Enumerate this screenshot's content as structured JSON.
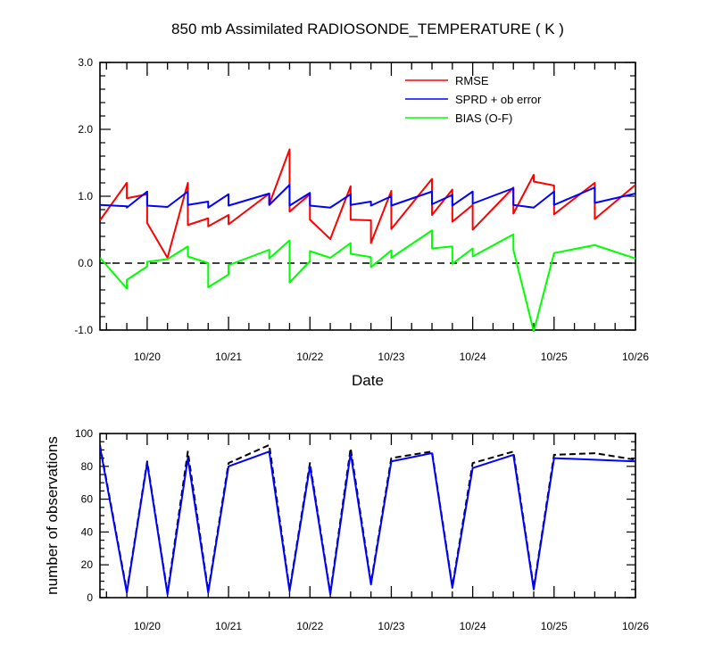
{
  "chart_data": [
    {
      "type": "line",
      "title": "850 mb Assimilated RADIOSONDE_TEMPERATURE ( K )",
      "xlabel": "Date",
      "ylabel": "",
      "x_range_days": [
        19.42,
        26.0
      ],
      "xtick_labels": [
        "10/20",
        "10/21",
        "10/22",
        "10/23",
        "10/24",
        "10/25",
        "10/26"
      ],
      "xtick_days": [
        20,
        21,
        22,
        23,
        24,
        25,
        26
      ],
      "ylim": [
        -1.0,
        3.0
      ],
      "yticks": [
        -1.0,
        0.0,
        1.0,
        2.0,
        3.0
      ],
      "ytick_labels": [
        "-1.0",
        "0.0",
        "1.0",
        "2.0",
        "3.0"
      ],
      "zero_line": true,
      "legend_position": "top-right",
      "series": [
        {
          "name": "RMSE",
          "color": "#ff0000",
          "points": [
            [
              19.42,
              0.64
            ],
            [
              19.75,
              1.2
            ],
            [
              19.75,
              0.97
            ],
            [
              20.0,
              1.03
            ],
            [
              20.0,
              0.6
            ],
            [
              20.25,
              0.08
            ],
            [
              20.5,
              1.2
            ],
            [
              20.5,
              0.57
            ],
            [
              20.75,
              0.67
            ],
            [
              20.75,
              0.55
            ],
            [
              21.0,
              0.72
            ],
            [
              21.0,
              0.58
            ],
            [
              21.5,
              1.04
            ],
            [
              21.5,
              0.88
            ],
            [
              21.75,
              1.7
            ],
            [
              21.75,
              0.77
            ],
            [
              22.0,
              1.03
            ],
            [
              22.0,
              0.65
            ],
            [
              22.25,
              0.36
            ],
            [
              22.5,
              1.15
            ],
            [
              22.5,
              0.65
            ],
            [
              22.75,
              0.64
            ],
            [
              22.75,
              0.3
            ],
            [
              23.0,
              1.08
            ],
            [
              23.0,
              0.51
            ],
            [
              23.5,
              1.26
            ],
            [
              23.5,
              0.72
            ],
            [
              23.75,
              1.1
            ],
            [
              23.75,
              0.62
            ],
            [
              24.0,
              0.87
            ],
            [
              24.0,
              0.5
            ],
            [
              24.5,
              1.13
            ],
            [
              24.5,
              0.74
            ],
            [
              24.75,
              1.32
            ],
            [
              24.75,
              1.22
            ],
            [
              25.0,
              1.16
            ],
            [
              25.0,
              0.73
            ],
            [
              25.5,
              1.2
            ],
            [
              25.5,
              0.66
            ],
            [
              26.0,
              1.17
            ],
            [
              26.0,
              0.7
            ]
          ]
        },
        {
          "name": "SPRD + ob error",
          "color": "#0000ff",
          "points": [
            [
              19.42,
              0.87
            ],
            [
              19.75,
              0.85
            ],
            [
              19.75,
              0.83
            ],
            [
              20.0,
              1.07
            ],
            [
              20.0,
              0.86
            ],
            [
              20.25,
              0.84
            ],
            [
              20.5,
              1.07
            ],
            [
              20.5,
              0.87
            ],
            [
              20.75,
              0.92
            ],
            [
              20.75,
              0.83
            ],
            [
              21.0,
              1.03
            ],
            [
              21.0,
              0.86
            ],
            [
              21.5,
              1.04
            ],
            [
              21.5,
              0.87
            ],
            [
              21.75,
              1.17
            ],
            [
              21.75,
              0.86
            ],
            [
              22.0,
              1.05
            ],
            [
              22.0,
              0.86
            ],
            [
              22.25,
              0.83
            ],
            [
              22.5,
              1.03
            ],
            [
              22.5,
              0.87
            ],
            [
              22.75,
              0.92
            ],
            [
              22.75,
              0.86
            ],
            [
              23.0,
              1.0
            ],
            [
              23.0,
              0.86
            ],
            [
              23.5,
              1.07
            ],
            [
              23.5,
              0.88
            ],
            [
              23.75,
              1.02
            ],
            [
              23.75,
              0.86
            ],
            [
              24.0,
              1.07
            ],
            [
              24.0,
              0.89
            ],
            [
              24.5,
              1.12
            ],
            [
              24.5,
              0.87
            ],
            [
              24.75,
              0.83
            ],
            [
              25.0,
              1.07
            ],
            [
              25.0,
              0.87
            ],
            [
              25.5,
              1.13
            ],
            [
              25.5,
              0.9
            ],
            [
              26.0,
              1.04
            ]
          ]
        },
        {
          "name": "BIAS (O-F)",
          "color": "#00ff00",
          "points": [
            [
              19.42,
              0.08
            ],
            [
              19.75,
              -0.38
            ],
            [
              19.75,
              -0.25
            ],
            [
              20.0,
              -0.05
            ],
            [
              20.0,
              0.02
            ],
            [
              20.25,
              0.06
            ],
            [
              20.5,
              0.25
            ],
            [
              20.5,
              0.1
            ],
            [
              20.75,
              0.0
            ],
            [
              20.75,
              -0.36
            ],
            [
              21.0,
              -0.17
            ],
            [
              21.0,
              -0.03
            ],
            [
              21.5,
              0.2
            ],
            [
              21.5,
              0.07
            ],
            [
              21.75,
              0.34
            ],
            [
              21.75,
              -0.29
            ],
            [
              22.0,
              0.03
            ],
            [
              22.0,
              0.18
            ],
            [
              22.25,
              0.08
            ],
            [
              22.5,
              0.3
            ],
            [
              22.5,
              0.14
            ],
            [
              22.75,
              0.09
            ],
            [
              22.75,
              -0.06
            ],
            [
              23.0,
              0.19
            ],
            [
              23.0,
              0.08
            ],
            [
              23.5,
              0.49
            ],
            [
              23.5,
              0.22
            ],
            [
              23.75,
              0.25
            ],
            [
              23.75,
              -0.01
            ],
            [
              24.0,
              0.22
            ],
            [
              24.0,
              0.1
            ],
            [
              24.5,
              0.43
            ],
            [
              24.5,
              0.2
            ],
            [
              24.75,
              -1.02
            ],
            [
              25.0,
              0.15
            ],
            [
              25.5,
              0.27
            ],
            [
              26.0,
              0.07
            ]
          ]
        }
      ]
    },
    {
      "type": "line",
      "title": "",
      "xlabel": "",
      "ylabel": "number of observations",
      "x_range_days": [
        19.42,
        26.0
      ],
      "xtick_labels": [
        "10/20",
        "10/21",
        "10/22",
        "10/23",
        "10/24",
        "10/25",
        "10/26"
      ],
      "xtick_days": [
        20,
        21,
        22,
        23,
        24,
        25,
        26
      ],
      "ylim": [
        0,
        100
      ],
      "yticks": [
        0,
        20,
        40,
        60,
        80,
        100
      ],
      "ytick_labels": [
        "0",
        "20",
        "40",
        "60",
        "80",
        "100"
      ],
      "series": [
        {
          "name": "",
          "style": "dashed",
          "color": "#000000",
          "points": [
            [
              19.42,
              93
            ],
            [
              19.75,
              4
            ],
            [
              20.0,
              83
            ],
            [
              20.25,
              3
            ],
            [
              20.5,
              89
            ],
            [
              20.75,
              4
            ],
            [
              21.0,
              82
            ],
            [
              21.5,
              93
            ],
            [
              21.75,
              5
            ],
            [
              22.0,
              82
            ],
            [
              22.25,
              3
            ],
            [
              22.5,
              91
            ],
            [
              22.75,
              9
            ],
            [
              23.0,
              85
            ],
            [
              23.5,
              89
            ],
            [
              23.75,
              7
            ],
            [
              24.0,
              82
            ],
            [
              24.5,
              89
            ],
            [
              24.75,
              6
            ],
            [
              25.0,
              87
            ],
            [
              25.5,
              88
            ],
            [
              26.0,
              84
            ]
          ]
        },
        {
          "name": "",
          "style": "solid",
          "color": "#0000ff",
          "points": [
            [
              19.42,
              92
            ],
            [
              19.75,
              3
            ],
            [
              20.0,
              82
            ],
            [
              20.25,
              2
            ],
            [
              20.5,
              85
            ],
            [
              20.75,
              3
            ],
            [
              21.0,
              80
            ],
            [
              21.5,
              89
            ],
            [
              21.75,
              4
            ],
            [
              22.0,
              80
            ],
            [
              22.25,
              2
            ],
            [
              22.5,
              88
            ],
            [
              22.75,
              8
            ],
            [
              23.0,
              83
            ],
            [
              23.5,
              88
            ],
            [
              23.75,
              6
            ],
            [
              24.0,
              79
            ],
            [
              24.5,
              87
            ],
            [
              24.75,
              5
            ],
            [
              25.0,
              85
            ],
            [
              26.0,
              83
            ]
          ]
        }
      ]
    }
  ]
}
